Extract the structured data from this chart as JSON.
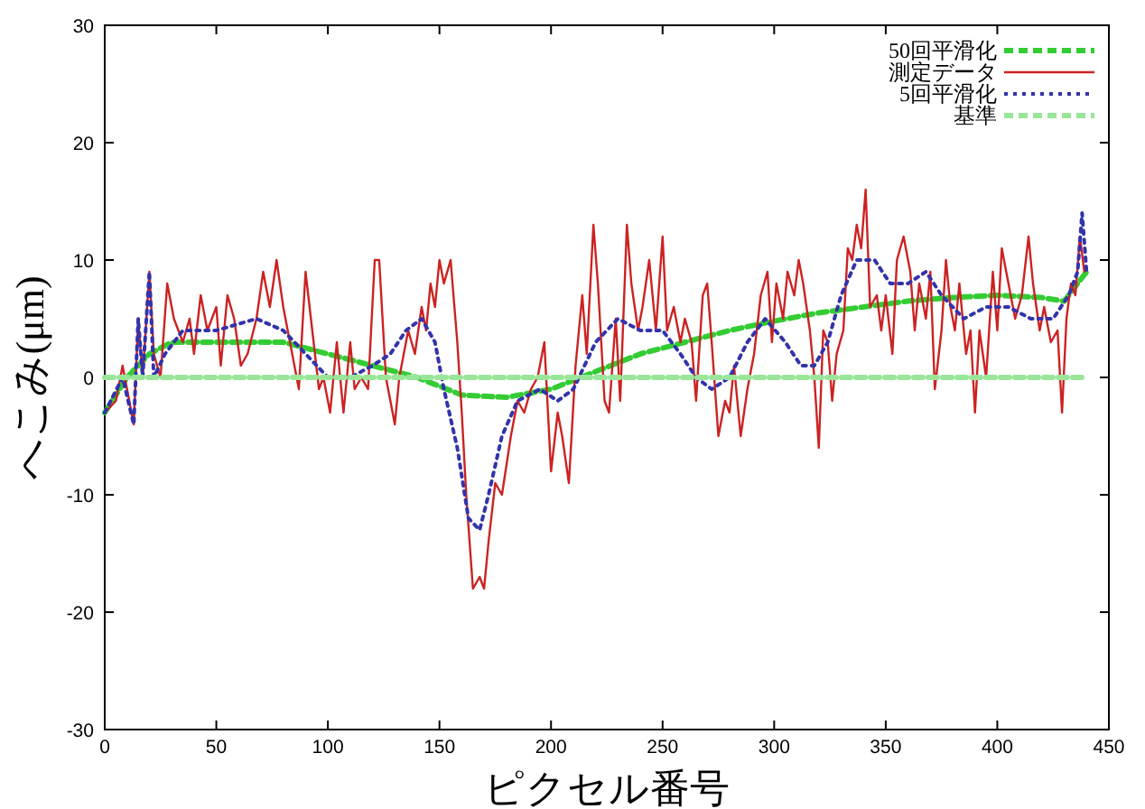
{
  "chart_data": {
    "type": "line",
    "xlabel": "ピクセル番号",
    "ylabel": "へこみ(μm)",
    "xlim": [
      0,
      450
    ],
    "ylim": [
      -30,
      30
    ],
    "xticks": [
      0,
      50,
      100,
      150,
      200,
      250,
      300,
      350,
      400,
      450
    ],
    "yticks": [
      -30,
      -20,
      -10,
      0,
      10,
      20,
      30
    ],
    "grid": false,
    "legend": "top right",
    "marker": "none",
    "series": [
      {
        "name": "50回平滑化",
        "color": "#33cc33",
        "line_style": "dashed",
        "x": [
          0,
          10,
          20,
          30,
          45,
          60,
          80,
          100,
          120,
          140,
          160,
          180,
          200,
          220,
          240,
          260,
          280,
          300,
          320,
          340,
          360,
          380,
          400,
          420,
          430,
          436,
          440
        ],
        "values": [
          -3,
          0,
          2,
          3,
          3,
          3,
          3,
          2,
          1,
          0,
          -1.5,
          -1.7,
          -1,
          0.5,
          2,
          3,
          4,
          4.8,
          5.5,
          6,
          6.5,
          6.8,
          7,
          6.8,
          6.5,
          8,
          9
        ]
      },
      {
        "name": "測定データ",
        "color": "#cc2222",
        "line_style": "solid",
        "x": [
          0,
          5,
          8,
          10,
          13,
          15,
          17,
          20,
          22,
          25,
          28,
          31,
          35,
          38,
          40,
          43,
          46,
          50,
          52,
          55,
          58,
          61,
          64,
          68,
          71,
          74,
          77,
          80,
          84,
          87,
          90,
          93,
          96,
          98,
          101,
          104,
          107,
          110,
          112,
          115,
          118,
          121,
          123,
          126,
          128,
          130,
          132,
          136,
          139,
          142,
          144,
          146,
          148,
          150,
          152,
          155,
          158,
          160,
          162,
          165,
          168,
          170,
          172,
          175,
          178,
          182,
          185,
          188,
          191,
          194,
          197,
          200,
          203,
          205,
          208,
          211,
          214,
          216,
          219,
          221,
          224,
          226,
          229,
          231,
          234,
          236,
          239,
          241,
          244,
          247,
          250,
          252,
          255,
          258,
          260,
          263,
          265,
          268,
          270,
          272,
          275,
          278,
          280,
          282,
          285,
          288,
          291,
          294,
          297,
          299,
          301,
          304,
          306,
          309,
          311,
          313,
          316,
          318,
          320,
          322,
          324,
          326,
          328,
          331,
          333,
          335,
          337,
          339,
          341,
          343,
          346,
          348,
          350,
          353,
          355,
          358,
          361,
          363,
          365,
          368,
          370,
          372,
          375,
          377,
          379,
          381,
          383,
          386,
          388,
          390,
          392,
          395,
          398,
          400,
          402,
          405,
          408,
          411,
          414,
          416,
          419,
          421,
          424,
          427,
          429,
          431,
          433,
          435,
          437,
          439
        ],
        "values": [
          -3,
          -2,
          1,
          -1,
          -4,
          5,
          0,
          9,
          2,
          0,
          8,
          5,
          3,
          5,
          2,
          7,
          4,
          6,
          1,
          7,
          5,
          1,
          2,
          5,
          9,
          6,
          10,
          6,
          2,
          -1,
          9,
          4,
          -1,
          0,
          -3,
          3,
          -3,
          3,
          -1,
          0,
          -1,
          10,
          10,
          0,
          -2,
          -4,
          0,
          4,
          2,
          6,
          4,
          8,
          6,
          10,
          8,
          10,
          3,
          -3,
          -10,
          -18,
          -17,
          -18,
          -14,
          -9,
          -10,
          -5,
          -2,
          -3,
          -1,
          0,
          3,
          -8,
          -3,
          -5,
          -9,
          1,
          7,
          2,
          13,
          8,
          -2,
          -3,
          5,
          -2,
          13,
          8,
          4,
          6,
          10,
          4,
          12,
          4,
          6,
          3,
          5,
          3,
          -2,
          7,
          8,
          3,
          -5,
          -2,
          -3,
          1,
          -5,
          -1,
          2,
          7,
          9,
          3,
          8,
          5,
          9,
          7,
          10,
          8,
          4,
          0,
          -6,
          4,
          3,
          -2,
          2,
          4,
          11,
          10,
          13,
          11,
          16,
          6,
          7,
          4,
          7,
          2,
          10,
          12,
          9,
          4,
          8,
          5,
          9,
          -1,
          4,
          10,
          6,
          4,
          8,
          2,
          4,
          -3,
          4,
          0,
          9,
          4,
          11,
          8,
          5,
          7,
          12,
          8,
          4,
          6,
          3,
          4,
          -3,
          5,
          8,
          7,
          12,
          9
        ]
      },
      {
        "name": "5回平滑化",
        "color": "#3333aa",
        "line_style": "dotted",
        "x": [
          0,
          8,
          13,
          15,
          17,
          20,
          22,
          27,
          35,
          50,
          68,
          80,
          90,
          100,
          110,
          120,
          128,
          135,
          142,
          148,
          152,
          158,
          163,
          168,
          172,
          178,
          185,
          195,
          203,
          210,
          220,
          230,
          240,
          250,
          258,
          265,
          272,
          280,
          288,
          296,
          305,
          312,
          318,
          324,
          330,
          337,
          345,
          352,
          360,
          368,
          375,
          385,
          395,
          405,
          415,
          425,
          432,
          436,
          438,
          440
        ],
        "values": [
          -3,
          0,
          -4,
          5,
          0,
          9,
          0,
          2,
          4,
          4,
          5,
          4,
          2,
          0,
          0,
          1,
          2,
          4,
          5,
          3,
          -1,
          -6,
          -12,
          -13,
          -10,
          -5,
          -2,
          -1,
          -2,
          -1,
          3,
          5,
          4,
          4,
          2,
          0,
          -1,
          0,
          3,
          5,
          3,
          1,
          1,
          3,
          7,
          10,
          10,
          8,
          8,
          9,
          7,
          5,
          6,
          6,
          5,
          5,
          7,
          9,
          14,
          9
        ]
      },
      {
        "name": "基準",
        "color": "#99e699",
        "line_style": "dashed",
        "x": [
          0,
          440
        ],
        "values": [
          0,
          0
        ]
      }
    ]
  }
}
